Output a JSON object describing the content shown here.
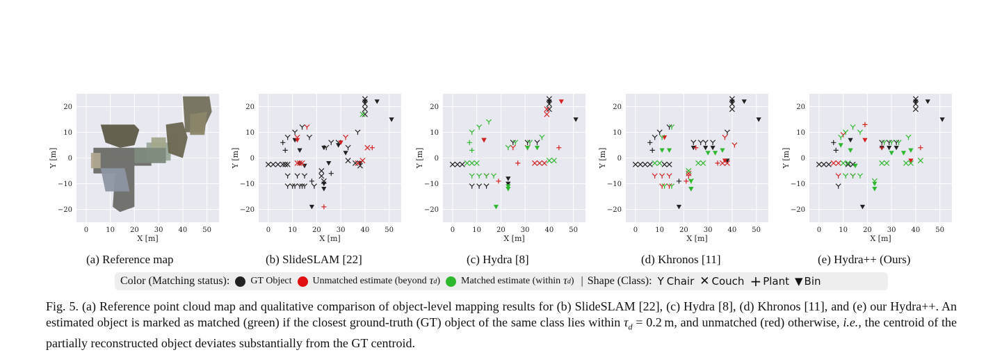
{
  "panels": [
    {
      "id": "a",
      "caption": "(a) Reference map",
      "type": "map"
    },
    {
      "id": "b",
      "caption": "(b) SlideSLAM [22]",
      "type": "scatter"
    },
    {
      "id": "c",
      "caption": "(c) Hydra [8]",
      "type": "scatter"
    },
    {
      "id": "d",
      "caption": "(d) Khronos [11]",
      "type": "scatter"
    },
    {
      "id": "e",
      "caption": "(e) Hydra++ (Ours)",
      "type": "scatter"
    }
  ],
  "axes": {
    "xlabel": "X [m]",
    "ylabel": "Y [m]",
    "xticks": [
      "0",
      "10",
      "20",
      "30",
      "40",
      "50"
    ],
    "yticks": [
      "20",
      "10",
      "0",
      "−10",
      "−20"
    ]
  },
  "colors": {
    "gt": "#222222",
    "unmatched": "#d62020",
    "matched": "#2eb82e",
    "plot_bg": "#e8e8f0",
    "grid": "#ffffff",
    "legend_bg": "#eeeeee"
  },
  "legend": {
    "color_title": "Color (Matching status):",
    "gt": "GT Object",
    "unmatched": "Unmatched estimate (beyond",
    "matched": "Matched estimate (within",
    "tau": "τ",
    "tau_sub": "d",
    "close_paren": ")",
    "divider": "|",
    "shape_title": "Shape (Class):",
    "chair": "Chair",
    "couch": "Couch",
    "plant": "Plant",
    "bin": "Bin",
    "chair_icon": "Υ",
    "couch_icon": "✕",
    "plant_icon": "+",
    "bin_icon": "▼"
  },
  "caption": {
    "p1": "Fig. 5. (a) Reference point cloud map and qualitative comparison of object-level mapping results for (b) SlideSLAM [22], (c) Hydra [8], (d) Khronos [11], and (e) our Hydra++. An estimated object is marked as matched (green) if the closest ground-truth (GT) object of the same class lies within ",
    "tau_expr": "τ",
    "tau_sub": "d",
    "tau_val": " = 0.2 m",
    "p2": ", and unmatched (red) otherwise, ",
    "ie": "i.e.,",
    "p3": " the centroid of the partially reconstructed object deviates substantially from the GT centroid."
  },
  "chart_data": [
    {
      "type": "scatter",
      "panel": "b",
      "xlabel": "X [m]",
      "ylabel": "Y [m]",
      "xlim": [
        -4,
        55
      ],
      "ylim": [
        -25,
        25
      ],
      "gt": [
        {
          "c": "couch",
          "x": [
            0,
            2,
            4,
            6,
            7,
            8,
            22,
            22,
            23,
            40,
            40,
            40,
            40,
            33,
            36,
            38
          ],
          "y": [
            -2.5,
            -2.5,
            -2.5,
            -2.5,
            -2.5,
            -2.5,
            -5,
            -7,
            -9,
            17,
            19,
            21,
            23,
            -1,
            -2,
            -3
          ]
        },
        {
          "c": "chair",
          "x": [
            8,
            12,
            15,
            10,
            13,
            15,
            19,
            8,
            11,
            14,
            17,
            8,
            11,
            14,
            24,
            26,
            29,
            33,
            37
          ],
          "y": [
            -7,
            -7,
            -7,
            -11,
            -11,
            -11,
            -11,
            8,
            10,
            12,
            8,
            -11,
            -11,
            -11,
            4,
            6,
            6,
            4,
            10
          ]
        },
        {
          "c": "plant",
          "x": [
            6,
            7,
            18,
            13,
            26
          ],
          "y": [
            6,
            3,
            -9,
            -2,
            -6
          ]
        },
        {
          "c": "bin",
          "x": [
            40,
            45,
            51,
            18,
            23,
            23,
            11,
            13,
            15,
            23,
            29,
            32,
            25,
            38
          ],
          "y": [
            22,
            22,
            15,
            -19,
            -12,
            -10,
            7,
            3,
            -3,
            4,
            5,
            2,
            -2,
            -2
          ]
        }
      ],
      "est": [
        {
          "status": "unmatched",
          "c": "couch",
          "x": [
            12,
            13,
            14,
            37,
            39,
            41
          ],
          "y": [
            -2,
            -2,
            -2,
            -2,
            -1,
            4
          ]
        },
        {
          "status": "unmatched",
          "c": "plant",
          "x": [
            23,
            43
          ],
          "y": [
            -19,
            4
          ]
        },
        {
          "status": "unmatched",
          "c": "chair",
          "x": [
            12,
            16,
            32
          ],
          "y": [
            8,
            12,
            8
          ]
        },
        {
          "status": "unmatched",
          "c": "bin",
          "x": [
            12,
            30
          ],
          "y": [
            7,
            6
          ]
        },
        {
          "status": "matched",
          "c": "couch",
          "x": [
            39
          ],
          "y": [
            17
          ]
        }
      ]
    },
    {
      "type": "scatter",
      "panel": "c",
      "xlabel": "X [m]",
      "ylabel": "Y [m]",
      "xlim": [
        -4,
        55
      ],
      "ylim": [
        -25,
        25
      ],
      "gt": [
        {
          "c": "couch",
          "x": [
            0,
            2,
            4,
            40,
            40,
            40
          ],
          "y": [
            -2.5,
            -2.5,
            -2.5,
            19,
            21,
            23
          ]
        },
        {
          "c": "bin",
          "x": [
            40,
            51,
            23,
            23,
            13
          ],
          "y": [
            22,
            15,
            -10,
            -8,
            7
          ]
        },
        {
          "c": "chair",
          "x": [
            8,
            11,
            14,
            25,
            31,
            35
          ],
          "y": [
            -11,
            -11,
            -11,
            6,
            6,
            6
          ]
        }
      ],
      "est": [
        {
          "status": "unmatched",
          "c": "couch",
          "x": [
            39,
            39,
            34,
            36,
            38
          ],
          "y": [
            17,
            19,
            -2,
            -2,
            -2
          ]
        },
        {
          "status": "unmatched",
          "c": "bin",
          "x": [
            45,
            13
          ],
          "y": [
            22,
            7
          ]
        },
        {
          "status": "unmatched",
          "c": "plant",
          "x": [
            19,
            27,
            44
          ],
          "y": [
            -9,
            -2,
            4
          ]
        },
        {
          "status": "unmatched",
          "c": "chair",
          "x": [
            14,
            25,
            31
          ],
          "y": [
            -7,
            4,
            4
          ]
        },
        {
          "status": "matched",
          "c": "bin",
          "x": [
            18,
            23,
            23,
            31,
            35
          ],
          "y": [
            -19,
            -12,
            -11,
            4,
            4
          ]
        },
        {
          "status": "matched",
          "c": "plant",
          "x": [
            7,
            8
          ],
          "y": [
            6,
            3
          ]
        },
        {
          "status": "matched",
          "c": "chair",
          "x": [
            8,
            11,
            14,
            17,
            8,
            11,
            15,
            23,
            26,
            32,
            37
          ],
          "y": [
            -7,
            -7,
            -7,
            -7,
            10,
            12,
            14,
            4,
            6,
            6,
            8
          ]
        },
        {
          "status": "matched",
          "c": "couch",
          "x": [
            6,
            8,
            10,
            40,
            42
          ],
          "y": [
            -2,
            -2,
            -2,
            -1,
            -1
          ]
        }
      ]
    },
    {
      "type": "scatter",
      "panel": "d",
      "xlabel": "X [m]",
      "ylabel": "Y [m]",
      "xlim": [
        -4,
        55
      ],
      "ylim": [
        -25,
        25
      ],
      "gt": [
        {
          "c": "couch",
          "x": [
            0,
            2,
            4,
            6,
            12,
            14,
            40,
            40,
            40
          ],
          "y": [
            -2.5,
            -2.5,
            -2.5,
            -2.5,
            -2.5,
            -2.5,
            19,
            21,
            23
          ]
        },
        {
          "c": "bin",
          "x": [
            40,
            45,
            51,
            18,
            23,
            24,
            29,
            32,
            38
          ],
          "y": [
            22,
            22,
            15,
            -19,
            -12,
            4,
            4,
            4,
            -1
          ]
        },
        {
          "c": "chair",
          "x": [
            8,
            10,
            14,
            24,
            27,
            29,
            32,
            38
          ],
          "y": [
            8,
            10,
            12,
            6,
            6,
            6,
            6,
            10
          ]
        },
        {
          "c": "plant",
          "x": [
            6,
            7,
            18
          ],
          "y": [
            6,
            3,
            -9
          ]
        }
      ],
      "est": [
        {
          "status": "unmatched",
          "c": "chair",
          "x": [
            8,
            11,
            14,
            11,
            14,
            22,
            37,
            41
          ],
          "y": [
            -7,
            -7,
            -7,
            -11,
            -11,
            -7,
            8,
            5
          ]
        },
        {
          "status": "unmatched",
          "c": "plant",
          "x": [
            21,
            25,
            34
          ],
          "y": [
            -9,
            4,
            -2
          ]
        },
        {
          "status": "unmatched",
          "c": "couch",
          "x": [
            22,
            36,
            38
          ],
          "y": [
            -6,
            -2,
            -2
          ]
        },
        {
          "status": "unmatched",
          "c": "bin",
          "x": [
            12,
            37
          ],
          "y": [
            8,
            -1
          ]
        },
        {
          "status": "matched",
          "c": "chair",
          "x": [
            11,
            15,
            12,
            15,
            23
          ],
          "y": [
            8,
            12,
            -11,
            -11,
            -9
          ]
        },
        {
          "status": "matched",
          "c": "bin",
          "x": [
            23,
            23,
            11,
            14,
            30,
            33,
            36
          ],
          "y": [
            -9,
            -12,
            3,
            3,
            2,
            2,
            3
          ]
        },
        {
          "status": "matched",
          "c": "couch",
          "x": [
            8,
            10,
            22,
            26,
            28
          ],
          "y": [
            -2,
            -2,
            -5,
            -2,
            -2
          ]
        }
      ]
    },
    {
      "type": "scatter",
      "panel": "e",
      "xlabel": "X [m]",
      "ylabel": "Y [m]",
      "xlim": [
        -4,
        55
      ],
      "ylim": [
        -25,
        25
      ],
      "gt": [
        {
          "c": "couch",
          "x": [
            0,
            2,
            4,
            12,
            14,
            40,
            40,
            40
          ],
          "y": [
            -2.5,
            -2.5,
            -2.5,
            -2.5,
            -2.5,
            19,
            21,
            23
          ]
        },
        {
          "c": "bin",
          "x": [
            40,
            45,
            51,
            18,
            13,
            26,
            29,
            32
          ],
          "y": [
            22,
            22,
            15,
            -19,
            7,
            4,
            4,
            4
          ]
        },
        {
          "c": "chair",
          "x": [
            8,
            26,
            29,
            32
          ],
          "y": [
            -11,
            6,
            6,
            6
          ]
        },
        {
          "c": "plant",
          "x": [
            6,
            7
          ],
          "y": [
            6,
            3
          ]
        }
      ],
      "est": [
        {
          "status": "unmatched",
          "c": "plant",
          "x": [
            19,
            26,
            42
          ],
          "y": [
            13,
            4,
            4
          ]
        },
        {
          "status": "unmatched",
          "c": "couch",
          "x": [
            6,
            8
          ],
          "y": [
            -2,
            -2
          ]
        },
        {
          "status": "unmatched",
          "c": "chair",
          "x": [
            8,
            10,
            14
          ],
          "y": [
            -7,
            9,
            -7
          ]
        },
        {
          "status": "unmatched",
          "c": "bin",
          "x": [
            19,
            38
          ],
          "y": [
            7,
            -1
          ]
        },
        {
          "status": "matched",
          "c": "chair",
          "x": [
            9,
            11,
            14,
            17,
            11,
            14,
            17,
            23,
            27,
            30,
            33,
            37
          ],
          "y": [
            8,
            10,
            12,
            10,
            -7,
            -7,
            -7,
            -9,
            6,
            6,
            6,
            8
          ]
        },
        {
          "status": "matched",
          "c": "bin",
          "x": [
            9,
            13,
            15,
            23,
            23,
            30,
            35,
            38
          ],
          "y": [
            5,
            3,
            -3,
            -10,
            -12,
            2,
            2,
            3
          ]
        },
        {
          "status": "matched",
          "c": "couch",
          "x": [
            10,
            12,
            26,
            28,
            36,
            38,
            42
          ],
          "y": [
            -2,
            -2,
            -2,
            -2,
            -2,
            -2,
            -1
          ]
        }
      ]
    }
  ]
}
